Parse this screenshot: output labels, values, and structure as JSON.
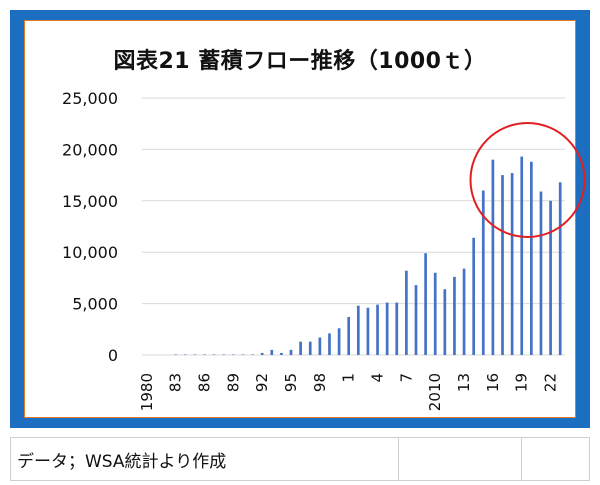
{
  "caption": "データ；WSA統計より作成",
  "chart_data": {
    "type": "bar",
    "title": "図表21 蓄積フロー推移（1000ｔ）",
    "xlabel": "",
    "ylabel": "",
    "ylim": [
      0,
      25000
    ],
    "yticks": [
      "25,000",
      "20,000",
      "15,000",
      "10,000",
      "5,000",
      "0"
    ],
    "xtick_labels": [
      "1980",
      "83",
      "86",
      "89",
      "92",
      "95",
      "98",
      "1",
      "4",
      "7",
      "2010",
      "13",
      "16",
      "19",
      "22"
    ],
    "highlight": {
      "shape": "circle",
      "color": "#e02020",
      "covers": "2015–2023"
    },
    "grid": true,
    "bar_color": "#4472c4",
    "categories": [
      "1980",
      "1981",
      "1982",
      "1983",
      "1984",
      "1985",
      "1986",
      "1987",
      "1988",
      "1989",
      "1990",
      "1991",
      "1992",
      "1993",
      "1994",
      "1995",
      "1996",
      "1997",
      "1998",
      "1999",
      "2000",
      "2001",
      "2002",
      "2003",
      "2004",
      "2005",
      "2006",
      "2007",
      "2008",
      "2009",
      "2010",
      "2011",
      "2012",
      "2013",
      "2014",
      "2015",
      "2016",
      "2017",
      "2018",
      "2019",
      "2020",
      "2021",
      "2022",
      "2023"
    ],
    "values": [
      0,
      0,
      0,
      50,
      50,
      50,
      50,
      50,
      50,
      50,
      50,
      50,
      200,
      500,
      200,
      500,
      1300,
      1300,
      1700,
      2100,
      2600,
      3700,
      4800,
      4600,
      4900,
      5100,
      5100,
      8200,
      6800,
      9900,
      8000,
      6400,
      7600,
      8400,
      11400,
      16000,
      19000,
      17500,
      17700,
      19300,
      18800,
      15900,
      15000,
      16800
    ]
  }
}
